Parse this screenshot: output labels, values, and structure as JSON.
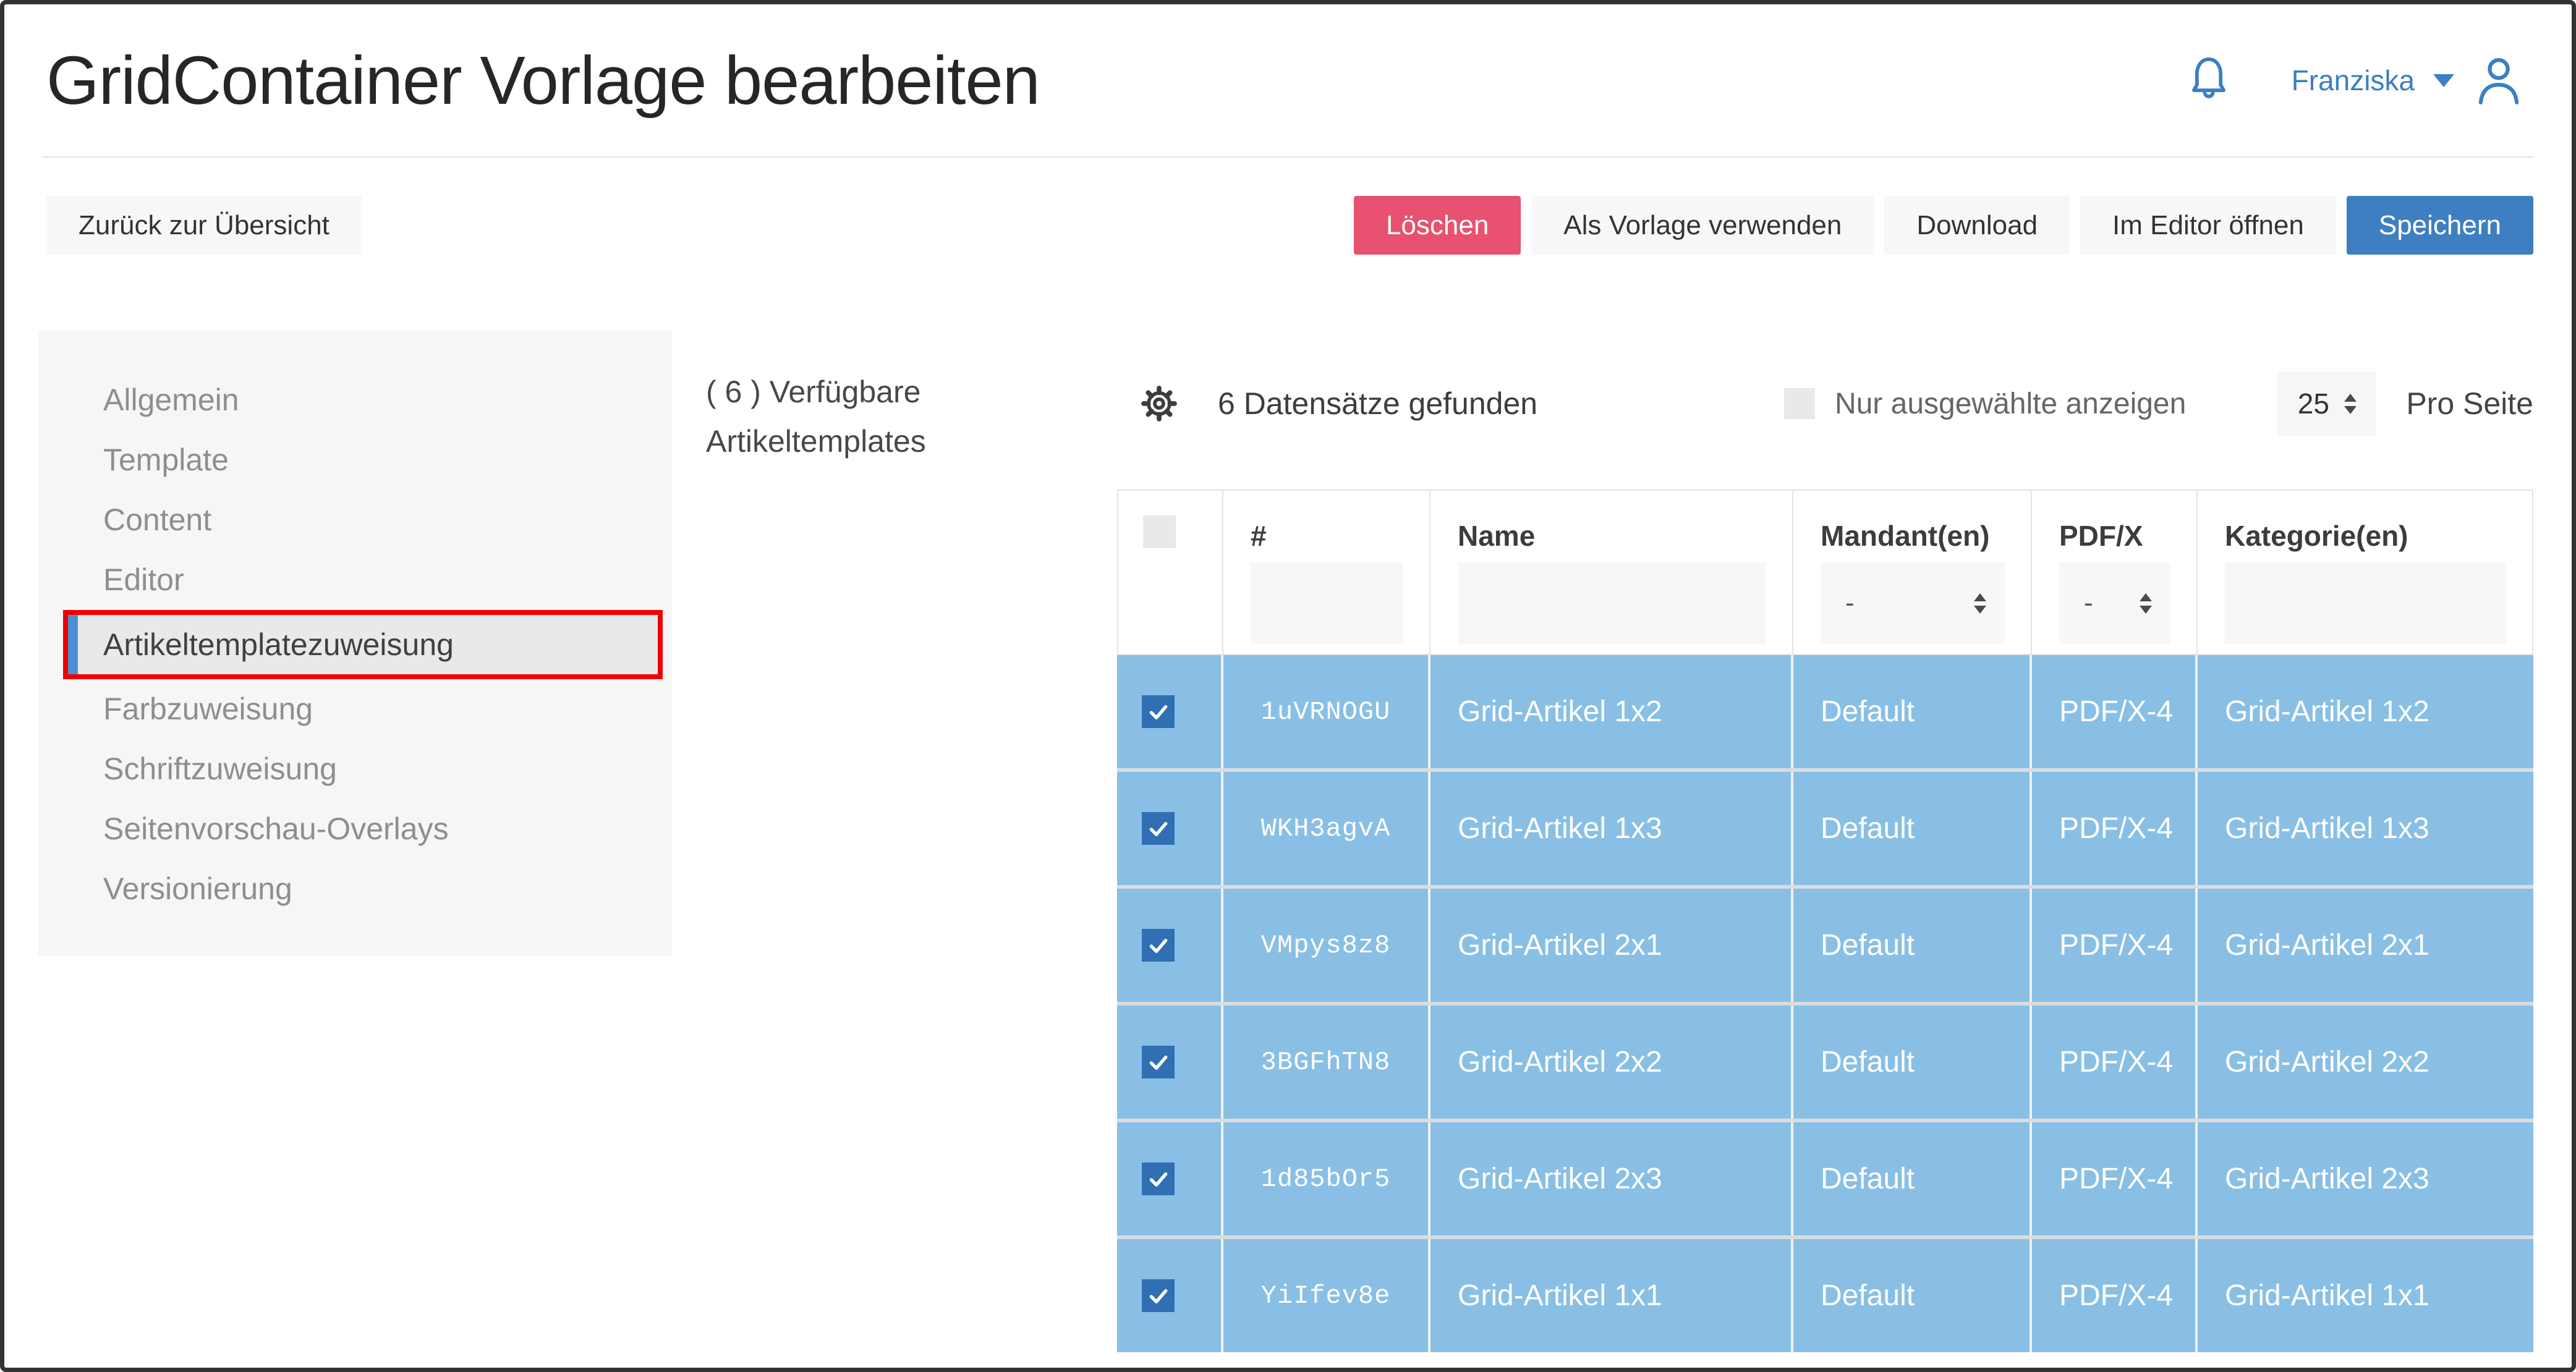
{
  "header": {
    "title": "GridContainer Vorlage bearbeiten",
    "user_name": "Franziska"
  },
  "toolbar": {
    "back_label": "Zurück zur Übersicht",
    "delete_label": "Löschen",
    "use_as_template_label": "Als Vorlage verwenden",
    "download_label": "Download",
    "open_editor_label": "Im Editor öffnen",
    "save_label": "Speichern"
  },
  "sidebar": {
    "items": [
      {
        "label": "Allgemein",
        "active": false
      },
      {
        "label": "Template",
        "active": false
      },
      {
        "label": "Content",
        "active": false
      },
      {
        "label": "Editor",
        "active": false
      },
      {
        "label": "Artikeltemplatezuweisung",
        "active": true
      },
      {
        "label": "Farbzuweisung",
        "active": false
      },
      {
        "label": "Schriftzuweisung",
        "active": false
      },
      {
        "label": "Seitenvorschau-Overlays",
        "active": false
      },
      {
        "label": "Versionierung",
        "active": false
      }
    ]
  },
  "panel": {
    "available_label": "( 6 ) Verfügbare Artikeltemplates"
  },
  "grid": {
    "records_found": "6 Datensätze gefunden",
    "show_selected_label": "Nur ausgewählte anzeigen",
    "per_page_value": "25",
    "per_page_label": "Pro Seite",
    "columns": {
      "id": "#",
      "name": "Name",
      "mandant": "Mandant(en)",
      "pdfx": "PDF/X",
      "kategorie": "Kategorie(en)"
    },
    "filters": {
      "mandant_value": "-",
      "pdfx_value": "-"
    },
    "rows": [
      {
        "checked": true,
        "id": "1uVRNOGU",
        "name": "Grid-Artikel 1x2",
        "mandant": "Default",
        "pdfx": "PDF/X-4",
        "kategorie": "Grid-Artikel 1x2"
      },
      {
        "checked": true,
        "id": "WKH3agvA",
        "name": "Grid-Artikel 1x3",
        "mandant": "Default",
        "pdfx": "PDF/X-4",
        "kategorie": "Grid-Artikel 1x3"
      },
      {
        "checked": true,
        "id": "VMpys8z8",
        "name": "Grid-Artikel 2x1",
        "mandant": "Default",
        "pdfx": "PDF/X-4",
        "kategorie": "Grid-Artikel 2x1"
      },
      {
        "checked": true,
        "id": "3BGFhTN8",
        "name": "Grid-Artikel 2x2",
        "mandant": "Default",
        "pdfx": "PDF/X-4",
        "kategorie": "Grid-Artikel 2x2"
      },
      {
        "checked": true,
        "id": "1d85bOr5",
        "name": "Grid-Artikel 2x3",
        "mandant": "Default",
        "pdfx": "PDF/X-4",
        "kategorie": "Grid-Artikel 2x3"
      },
      {
        "checked": true,
        "id": "YiIfev8e",
        "name": "Grid-Artikel 1x1",
        "mandant": "Default",
        "pdfx": "PDF/X-4",
        "kategorie": "Grid-Artikel 1x1"
      }
    ]
  },
  "icons": {
    "bell": "bell-icon",
    "user": "user-icon",
    "chevron": "chevron-down-icon",
    "gear": "gear-icon",
    "check": "checkmark-icon"
  },
  "colors": {
    "accent_blue": "#3b7fc4",
    "save_blue": "#3e7fc1",
    "delete_red": "#e8516f",
    "row_blue": "#89bfe4",
    "row_text": "#ffffff",
    "checkbox_blue": "#306fb4",
    "active_bar_blue": "#4a90d2",
    "annotation_red": "#f10000"
  }
}
